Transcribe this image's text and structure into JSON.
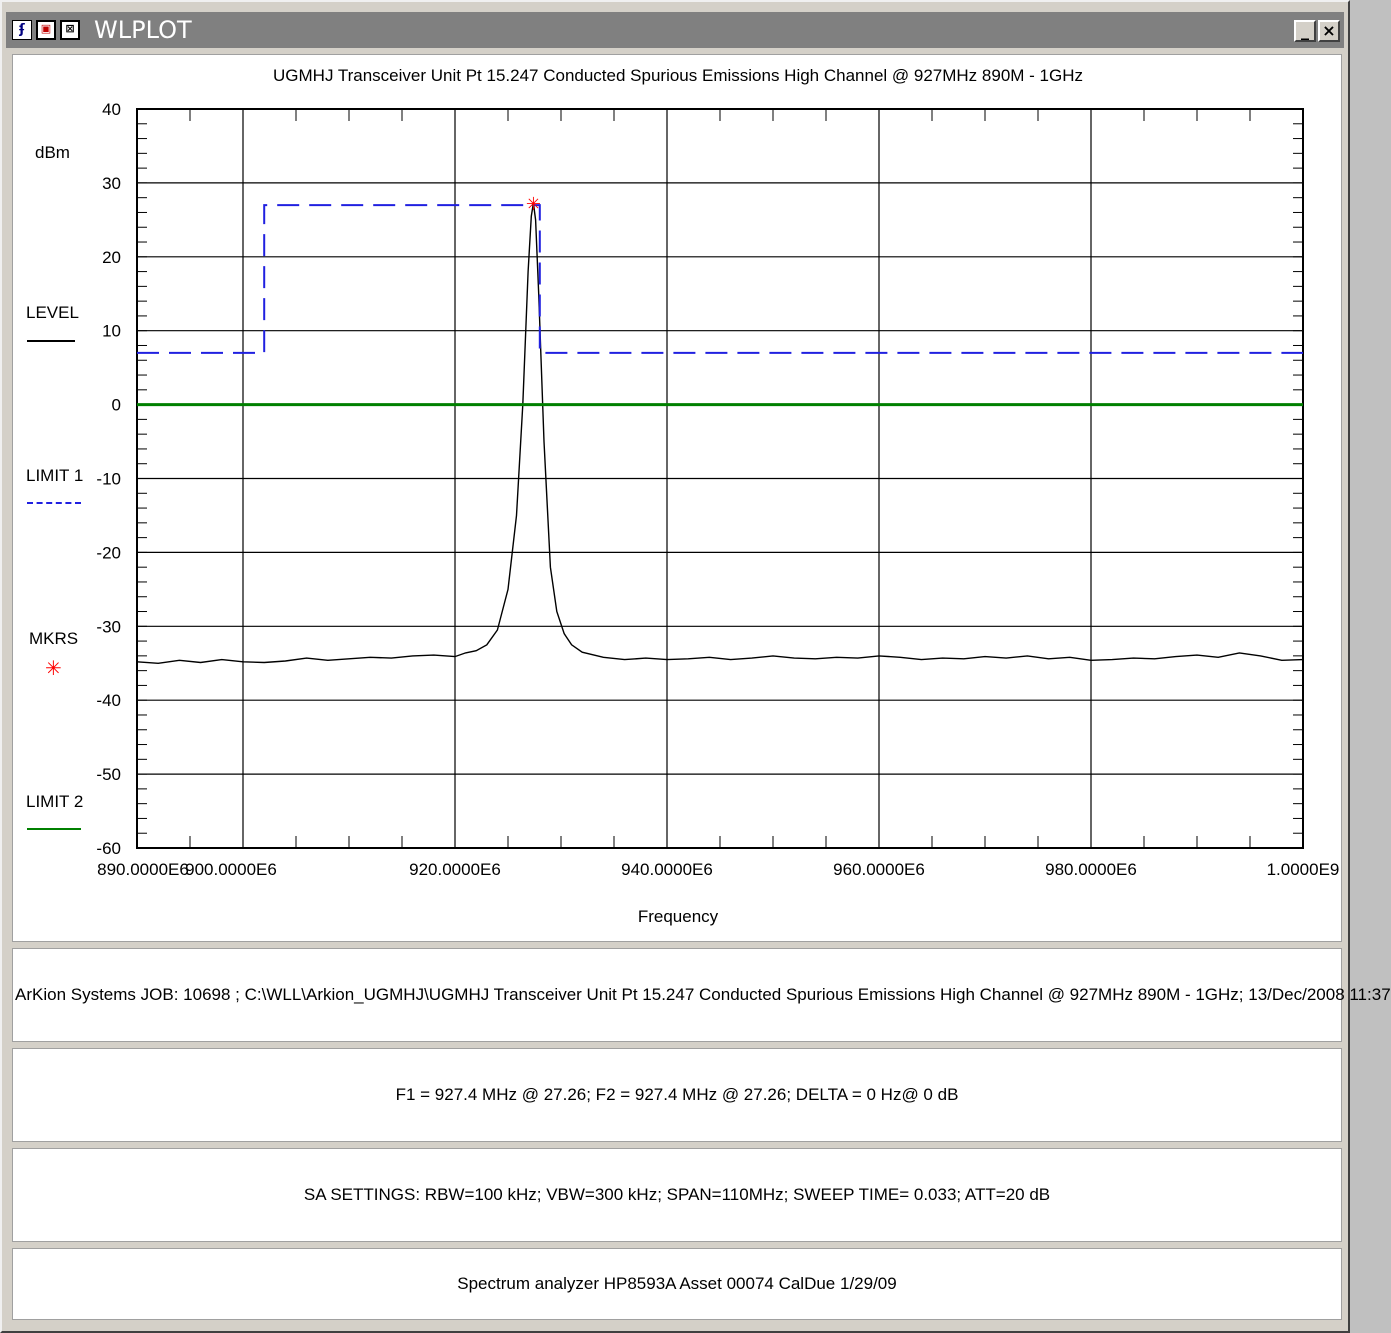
{
  "window": {
    "title": "WLPLOT",
    "minimize_glyph": "_",
    "close_glyph": "×",
    "icons": [
      "app-icon",
      "system-menu-icon",
      "restore-icon"
    ]
  },
  "chart_data": {
    "type": "line",
    "title": "UGMHJ Transceiver Unit Pt 15.247 Conducted Spurious Emissions High Channel @ 927MHz 890M - 1GHz",
    "xlabel": "Frequency",
    "ylabel": "dBm",
    "xlim": [
      890000000,
      1000000000
    ],
    "ylim": [
      -60,
      40
    ],
    "x_ticks": [
      890000000,
      900000000,
      920000000,
      940000000,
      960000000,
      980000000,
      1000000000
    ],
    "x_tick_labels": [
      "890.0000E6",
      "900.0000E6",
      "920.0000E6",
      "940.0000E6",
      "960.0000E6",
      "980.0000E6",
      "1.0000E9"
    ],
    "y_ticks": [
      40,
      30,
      20,
      10,
      0,
      -10,
      -20,
      -30,
      -40,
      -50,
      -60
    ],
    "y_tick_labels": [
      "40",
      "30",
      "20",
      "10",
      "0",
      "-10",
      "-20",
      "-30",
      "-40",
      "-50",
      "-60"
    ],
    "grid": true,
    "legend_position": "left",
    "series": [
      {
        "name": "LEVEL",
        "color": "#000000",
        "style": "solid",
        "points": [
          [
            890000000,
            -34.8
          ],
          [
            892000000,
            -35.0
          ],
          [
            894000000,
            -34.6
          ],
          [
            896000000,
            -34.9
          ],
          [
            898000000,
            -34.5
          ],
          [
            900000000,
            -34.8
          ],
          [
            902000000,
            -34.9
          ],
          [
            904000000,
            -34.7
          ],
          [
            906000000,
            -34.3
          ],
          [
            908000000,
            -34.6
          ],
          [
            910000000,
            -34.4
          ],
          [
            912000000,
            -34.2
          ],
          [
            914000000,
            -34.3
          ],
          [
            916000000,
            -34.0
          ],
          [
            918000000,
            -33.9
          ],
          [
            920000000,
            -34.1
          ],
          [
            921000000,
            -33.6
          ],
          [
            922000000,
            -33.3
          ],
          [
            923000000,
            -32.5
          ],
          [
            924000000,
            -30.5
          ],
          [
            925000000,
            -25.0
          ],
          [
            925800000,
            -15.0
          ],
          [
            926400000,
            0.0
          ],
          [
            926900000,
            18.0
          ],
          [
            927200000,
            25.5
          ],
          [
            927400000,
            27.26
          ],
          [
            927600000,
            25.0
          ],
          [
            927900000,
            15.0
          ],
          [
            928400000,
            -5.0
          ],
          [
            929000000,
            -22.0
          ],
          [
            929600000,
            -28.0
          ],
          [
            930300000,
            -31.0
          ],
          [
            931000000,
            -32.5
          ],
          [
            932000000,
            -33.5
          ],
          [
            934000000,
            -34.2
          ],
          [
            936000000,
            -34.5
          ],
          [
            938000000,
            -34.3
          ],
          [
            940000000,
            -34.5
          ],
          [
            942000000,
            -34.4
          ],
          [
            944000000,
            -34.2
          ],
          [
            946000000,
            -34.5
          ],
          [
            948000000,
            -34.3
          ],
          [
            950000000,
            -34.0
          ],
          [
            952000000,
            -34.3
          ],
          [
            954000000,
            -34.4
          ],
          [
            956000000,
            -34.2
          ],
          [
            958000000,
            -34.3
          ],
          [
            960000000,
            -34.0
          ],
          [
            962000000,
            -34.2
          ],
          [
            964000000,
            -34.5
          ],
          [
            966000000,
            -34.3
          ],
          [
            968000000,
            -34.4
          ],
          [
            970000000,
            -34.1
          ],
          [
            972000000,
            -34.3
          ],
          [
            974000000,
            -34.0
          ],
          [
            976000000,
            -34.4
          ],
          [
            978000000,
            -34.2
          ],
          [
            980000000,
            -34.6
          ],
          [
            982000000,
            -34.5
          ],
          [
            984000000,
            -34.3
          ],
          [
            986000000,
            -34.4
          ],
          [
            988000000,
            -34.1
          ],
          [
            990000000,
            -33.9
          ],
          [
            992000000,
            -34.2
          ],
          [
            994000000,
            -33.6
          ],
          [
            996000000,
            -34.0
          ],
          [
            998000000,
            -34.6
          ],
          [
            1000000000,
            -34.5
          ]
        ]
      },
      {
        "name": "LIMIT 1",
        "color": "#2020e0",
        "style": "dashed",
        "points": [
          [
            890000000,
            7
          ],
          [
            902000000,
            7
          ],
          [
            902000000,
            27
          ],
          [
            928000000,
            27
          ],
          [
            928000000,
            7
          ],
          [
            1000000000,
            7
          ]
        ]
      },
      {
        "name": "MKRS",
        "color": "#ff0000",
        "style": "marker",
        "points": [
          [
            927400000,
            27.26
          ]
        ]
      },
      {
        "name": "LIMIT 2",
        "color": "#008000",
        "style": "solid",
        "points": [
          [
            890000000,
            0
          ],
          [
            1000000000,
            0
          ]
        ]
      }
    ]
  },
  "info": {
    "job_line": "ArKion Systems  JOB: 10698   ;  C:\\WLL\\Arkion_UGMHJ\\UGMHJ Transceiver Unit Pt 15.247 Conducted Spurious Emissions High Channel @ 927MHz 890M - 1GHz;    13/Dec/2008 11:37",
    "markers_line": "F1 = 927.4 MHz @ 27.26;   F2 = 927.4 MHz @ 27.26;   DELTA = 0 Hz@ 0 dB",
    "sa_settings_line": "SA SETTINGS: RBW=100 kHz; VBW=300 kHz; SPAN=110MHz; SWEEP TIME= 0.033; ATT=20 dB",
    "analyzer_line": "Spectrum analyzer HP8593A Asset 00074 CalDue 1/29/09"
  }
}
